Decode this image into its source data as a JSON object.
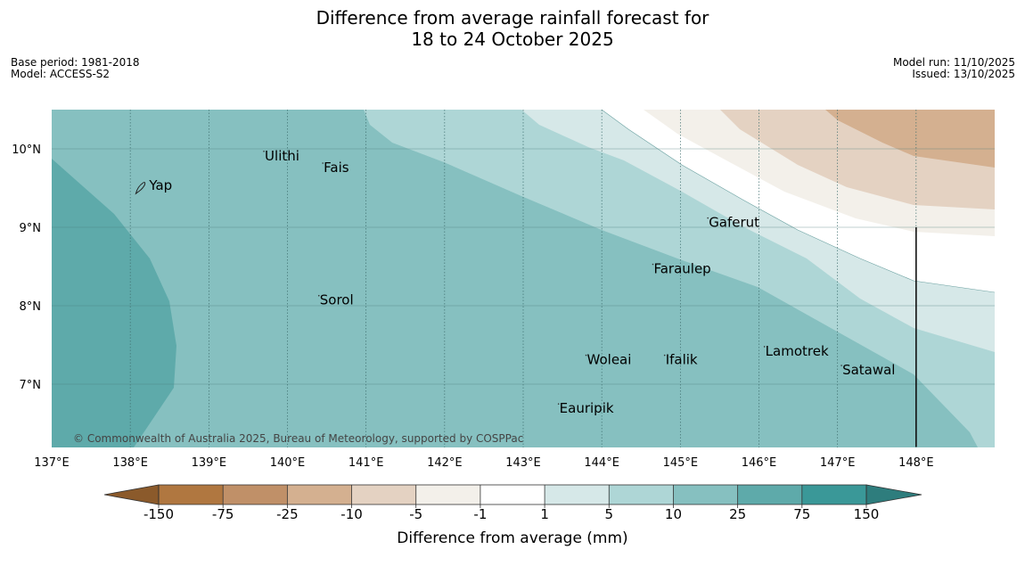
{
  "title": {
    "line1": "Difference from average rainfall forecast for",
    "line2": "18 to 24 October 2025"
  },
  "meta": {
    "base_period": "Base period: 1981-2018",
    "model": "Model: ACCESS-S2",
    "model_run": "Model run: 11/10/2025",
    "issued": "Issued: 13/10/2025"
  },
  "map": {
    "lon_range": [
      137,
      149
    ],
    "lat_range": [
      6.2,
      10.5
    ],
    "lon_ticks": [
      {
        "value": 137,
        "label": "137°E"
      },
      {
        "value": 138,
        "label": "138°E"
      },
      {
        "value": 139,
        "label": "139°E"
      },
      {
        "value": 140,
        "label": "140°E"
      },
      {
        "value": 141,
        "label": "141°E"
      },
      {
        "value": 142,
        "label": "142°E"
      },
      {
        "value": 143,
        "label": "143°E"
      },
      {
        "value": 144,
        "label": "144°E"
      },
      {
        "value": 145,
        "label": "145°E"
      },
      {
        "value": 146,
        "label": "146°E"
      },
      {
        "value": 147,
        "label": "147°E"
      },
      {
        "value": 148,
        "label": "148°E"
      }
    ],
    "lat_ticks": [
      {
        "value": 10,
        "label": "10°N"
      },
      {
        "value": 9,
        "label": "9°N"
      },
      {
        "value": 8,
        "label": "8°N"
      },
      {
        "value": 7,
        "label": "7°N"
      }
    ],
    "boundary_line": {
      "lon": 148,
      "lat_from": 6.2,
      "lat_to": 9.0
    },
    "places": [
      {
        "name": "Yap",
        "lon": 138.15,
        "lat": 9.52,
        "island": true
      },
      {
        "name": "Ulithi",
        "lon": 139.7,
        "lat": 9.9
      },
      {
        "name": "Fais",
        "lon": 140.45,
        "lat": 9.75
      },
      {
        "name": "Gaferut",
        "lon": 145.35,
        "lat": 9.05
      },
      {
        "name": "Faraulep",
        "lon": 144.65,
        "lat": 8.46
      },
      {
        "name": "Sorol",
        "lon": 140.4,
        "lat": 8.06
      },
      {
        "name": "Lamotrek",
        "lon": 146.07,
        "lat": 7.41
      },
      {
        "name": "Woleai",
        "lon": 143.8,
        "lat": 7.3
      },
      {
        "name": "Ifalik",
        "lon": 144.8,
        "lat": 7.3
      },
      {
        "name": "Satawal",
        "lon": 147.05,
        "lat": 7.17
      },
      {
        "name": "Eauripik",
        "lon": 143.45,
        "lat": 6.68
      }
    ],
    "copyright": "© Commonwealth of Australia 2025, Bureau of Meteorology, supported by COSPPac"
  },
  "legend": {
    "label": "Difference from average (mm)",
    "ticks": [
      "-150",
      "-75",
      "-25",
      "-10",
      "-5",
      "-1",
      "1",
      "5",
      "10",
      "25",
      "75",
      "150"
    ],
    "colors": {
      "below_min": "#8b5a2b",
      "bins": [
        "#b07740",
        "#c09068",
        "#d4b090",
        "#e4d2c2",
        "#f3f0ea",
        "#ffffff",
        "#d6e8e8",
        "#aed6d6",
        "#86c0c0",
        "#5eaaaa",
        "#3a9898"
      ],
      "above_max": "#2e7d7d"
    }
  }
}
